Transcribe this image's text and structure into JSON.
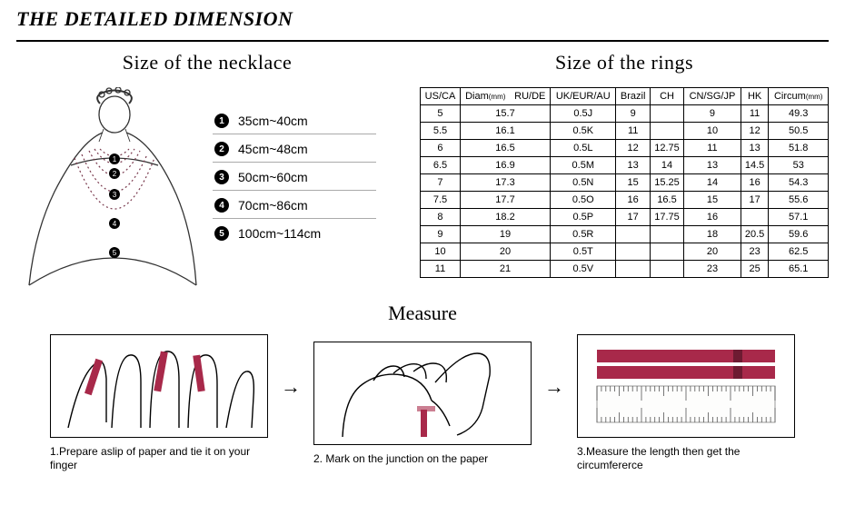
{
  "header_title": "THE DETAILED DIMENSION",
  "necklace": {
    "title": "Size of the necklace",
    "items": [
      {
        "num": "1",
        "range": "35cm~40cm"
      },
      {
        "num": "2",
        "range": "45cm~48cm"
      },
      {
        "num": "3",
        "range": "50cm~60cm"
      },
      {
        "num": "4",
        "range": "70cm~86cm"
      },
      {
        "num": "5",
        "range": "100cm~114cm"
      }
    ]
  },
  "rings": {
    "title": "Size of the rings",
    "columns": [
      "US/CA",
      "Diam(mm)",
      "RU/DE",
      "UK/EUR/AU",
      "Brazil",
      "CH",
      "CN/SG/JP",
      "HK",
      "Circum(mm)"
    ],
    "rows": [
      [
        "5",
        "15.7",
        "",
        "0.5J",
        "9",
        "",
        "9",
        "11",
        "49.3"
      ],
      [
        "5.5",
        "16.1",
        "",
        "0.5K",
        "11",
        "",
        "10",
        "12",
        "50.5"
      ],
      [
        "6",
        "16.5",
        "",
        "0.5L",
        "12",
        "12.75",
        "11",
        "13",
        "51.8"
      ],
      [
        "6.5",
        "16.9",
        "",
        "0.5M",
        "13",
        "14",
        "13",
        "14.5",
        "53"
      ],
      [
        "7",
        "17.3",
        "",
        "0.5N",
        "15",
        "15.25",
        "14",
        "16",
        "54.3"
      ],
      [
        "7.5",
        "17.7",
        "",
        "0.5O",
        "16",
        "16.5",
        "15",
        "17",
        "55.6"
      ],
      [
        "8",
        "18.2",
        "",
        "0.5P",
        "17",
        "17.75",
        "16",
        "",
        "57.1"
      ],
      [
        "9",
        "19",
        "",
        "0.5R",
        "",
        "",
        "18",
        "20.5",
        "59.6"
      ],
      [
        "10",
        "20",
        "",
        "0.5T",
        "",
        "",
        "20",
        "23",
        "62.5"
      ],
      [
        "11",
        "21",
        "",
        "0.5V",
        "",
        "",
        "23",
        "25",
        "65.1"
      ]
    ]
  },
  "measure": {
    "title": "Measure",
    "steps": [
      "1.Prepare aslip of paper and tie it on your finger",
      "2. Mark on the junction on the paper",
      "3.Measure the length then get the circumfererce"
    ],
    "arrow": "→",
    "accent_color": "#a8294a",
    "stroke_color": "#000000"
  },
  "style": {
    "necklace_stroke": "#333333",
    "necklace_chain": "#7a3a4e",
    "table_border": "#000000",
    "background": "#ffffff"
  }
}
